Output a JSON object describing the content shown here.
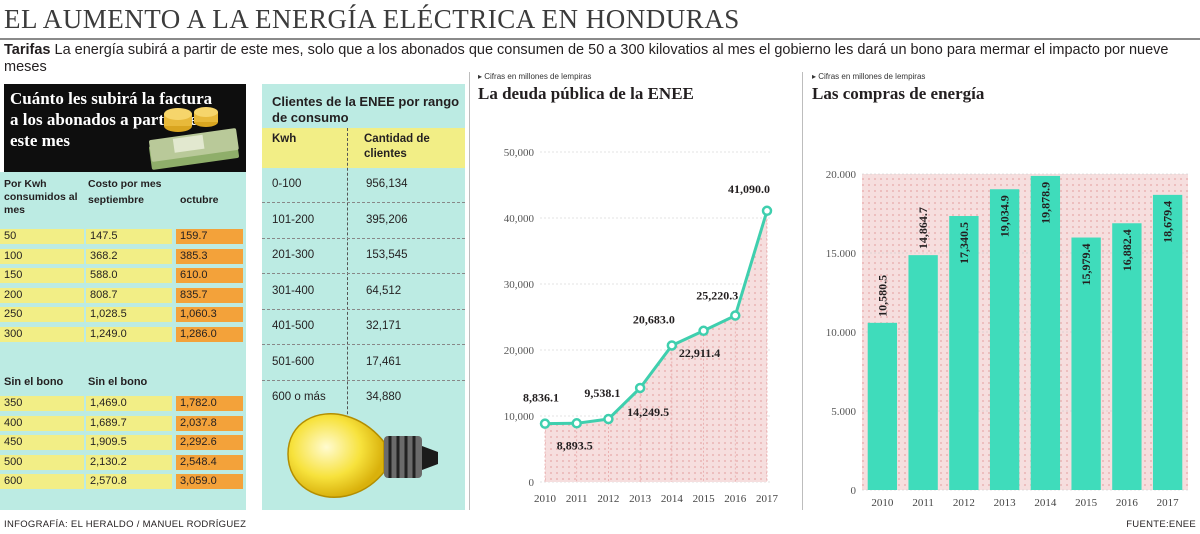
{
  "title": "EL AUMENTO A LA ENERGÍA ELÉCTRICA EN HONDURAS",
  "intro": {
    "lead": "Tarifas",
    "text": " La energía subirá a partir de este mes, solo que a los abonados que consumen de 50 a 300 kilovatios al mes el gobierno les dará un bono para mermar el impacto por nueve meses"
  },
  "price_table": {
    "heading": "Cuánto les subirá la factura a los abonados a partir de este mes",
    "col_kwh": "Por Kwh consumidos al mes",
    "col_cost": "Costo por mes",
    "col_sep": "septiembre",
    "col_oct": "octubre",
    "with_bonus": [
      {
        "kwh": "50",
        "sep": "147.5",
        "oct": "159.7"
      },
      {
        "kwh": "100",
        "sep": "368.2",
        "oct": "385.3"
      },
      {
        "kwh": "150",
        "sep": "588.0",
        "oct": "610.0"
      },
      {
        "kwh": "200",
        "sep": "808.7",
        "oct": "835.7"
      },
      {
        "kwh": "250",
        "sep": "1,028.5",
        "oct": "1,060.3"
      },
      {
        "kwh": "300",
        "sep": "1,249.0",
        "oct": "1,286.0"
      }
    ],
    "sub_left": "Sin el bono",
    "sub_mid": "Sin el bono",
    "without_bonus": [
      {
        "kwh": "350",
        "sep": "1,469.0",
        "oct": "1,782.0"
      },
      {
        "kwh": "400",
        "sep": "1,689.7",
        "oct": "2,037.8"
      },
      {
        "kwh": "450",
        "sep": "1,909.5",
        "oct": "2,292.6"
      },
      {
        "kwh": "500",
        "sep": "2,130.2",
        "oct": "2,548.4"
      },
      {
        "kwh": "600",
        "sep": "2,570.8",
        "oct": "3,059.0"
      }
    ]
  },
  "clients_table": {
    "title": "Clientes de la ENEE por rango de consumo",
    "col_kwh": "Kwh",
    "col_count": "Cantidad de clientes",
    "rows": [
      {
        "range": "0-100",
        "count": "956,134"
      },
      {
        "range": "101-200",
        "count": "395,206"
      },
      {
        "range": "201-300",
        "count": "153,545"
      },
      {
        "range": "301-400",
        "count": "64,512"
      },
      {
        "range": "401-500",
        "count": "32,171"
      },
      {
        "range": "501-600",
        "count": "17,461"
      },
      {
        "range": "600 o más",
        "count": "34,880"
      }
    ]
  },
  "chart_data": [
    {
      "type": "line",
      "caption": "Cifras en millones de lempiras",
      "title": "La deuda pública de la ENEE",
      "x": [
        "2010",
        "2011",
        "2012",
        "2013",
        "2014",
        "2015",
        "2016",
        "2017"
      ],
      "values": [
        8836.1,
        8893.5,
        9538.1,
        14249.5,
        20683.0,
        22911.4,
        25220.3,
        41090.0
      ],
      "labels": [
        "8,836.1",
        "8,893.5",
        "9,538.1",
        "14,249.5",
        "20,683.0",
        "22,911.4",
        "25,220.3",
        "41,090.0"
      ],
      "ylim": [
        0,
        50000
      ],
      "yticks": [
        "0",
        "10,000",
        "20,000",
        "30,000",
        "40,000",
        "50,000"
      ],
      "grid": true,
      "colors": {
        "line": "#3fcfae",
        "fill": "#f6dede",
        "point": "#ffffff"
      }
    },
    {
      "type": "bar",
      "caption": "Cifras en millones de lempiras",
      "title": "Las compras de energía",
      "categories": [
        "2010",
        "2011",
        "2012",
        "2013",
        "2014",
        "2015",
        "2016",
        "2017"
      ],
      "values": [
        10580.5,
        14864.7,
        17340.5,
        19034.9,
        19878.9,
        15979.4,
        16882.4,
        18679.4
      ],
      "labels": [
        "10,580.5",
        "14,864.7",
        "17,340.5",
        "19,034.9",
        "19,878.9",
        "15,979.4",
        "16,882.4",
        "18,679.4"
      ],
      "ylim": [
        0,
        20000
      ],
      "yticks": [
        "0",
        "5.000",
        "10.000",
        "15.000",
        "20.000"
      ],
      "grid": true,
      "colors": {
        "bar": "#3fdcbb",
        "fill": "#f6dede"
      }
    }
  ],
  "footer": {
    "credit": "INFOGRAFÍA: EL HERALDO / MANUEL RODRÍGUEZ",
    "source": "FUENTE:ENEE"
  }
}
